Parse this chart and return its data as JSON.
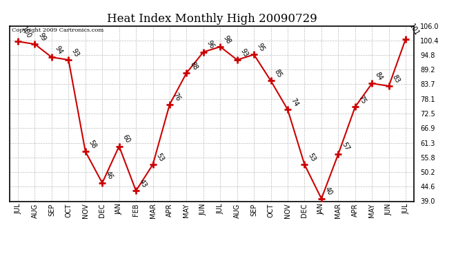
{
  "title": "Heat Index Monthly High 20090729",
  "copyright": "Copyright 2009 Cartronics.com",
  "months": [
    "JUL",
    "AUG",
    "SEP",
    "OCT",
    "NOV",
    "DEC",
    "JAN",
    "FEB",
    "MAR",
    "APR",
    "MAY",
    "JUN",
    "JUL",
    "AUG",
    "SEP",
    "OCT",
    "NOV",
    "DEC",
    "JAN",
    "MAR",
    "APR",
    "MAY",
    "JUN",
    "JUL"
  ],
  "values": [
    100,
    99,
    94,
    93,
    58,
    46,
    60,
    43,
    53,
    76,
    88,
    96,
    98,
    93,
    95,
    85,
    74,
    53,
    40,
    57,
    75,
    84,
    83,
    101
  ],
  "ylim_min": 39.0,
  "ylim_max": 106.0,
  "yticks": [
    39.0,
    44.6,
    50.2,
    55.8,
    61.3,
    66.9,
    72.5,
    78.1,
    83.7,
    89.2,
    94.8,
    100.4,
    106.0
  ],
  "line_color": "#cc0000",
  "marker_color": "#cc0000",
  "bg_color": "#ffffff",
  "grid_color": "#bbbbbb",
  "title_fontsize": 12,
  "label_fontsize": 7,
  "tick_fontsize": 7
}
